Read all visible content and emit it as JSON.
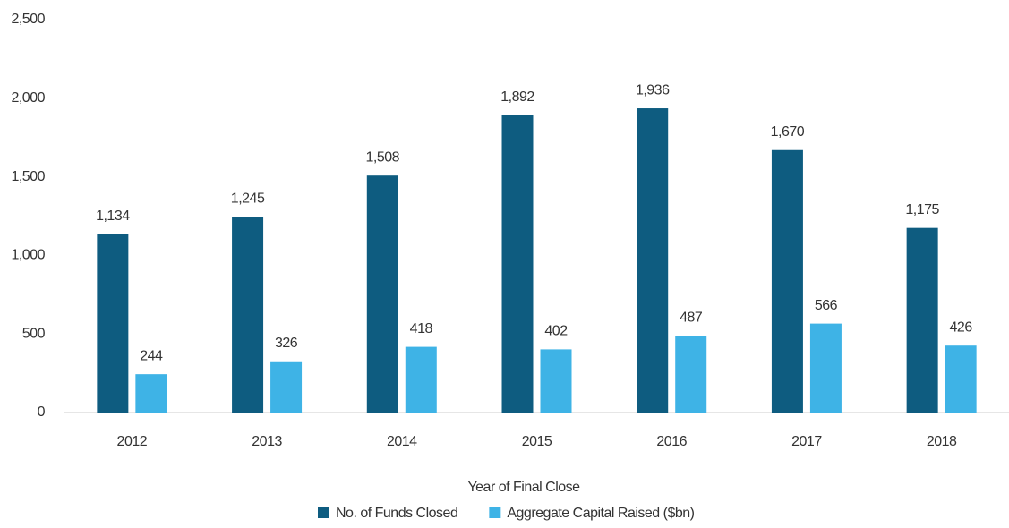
{
  "chart_data": {
    "type": "bar",
    "x_label": "Year of Final Close",
    "categories": [
      "2012",
      "2013",
      "2014",
      "2015",
      "2016",
      "2017",
      "2018"
    ],
    "series": [
      {
        "name": "No. of Funds Closed",
        "color": "#0e5c80",
        "values": [
          1134,
          1245,
          1508,
          1892,
          1936,
          1670,
          1175
        ],
        "value_labels": [
          "1,134",
          "1,245",
          "1,508",
          "1,892",
          "1,936",
          "1,670",
          "1,175"
        ]
      },
      {
        "name": "Aggregate Capital Raised ($bn)",
        "color": "#3eb3e6",
        "values": [
          244,
          326,
          418,
          402,
          487,
          566,
          426
        ]
      }
    ],
    "ylim": [
      0,
      2500
    ],
    "yticks": [
      0,
      500,
      {
        "value": 1000,
        "label": "1,000"
      },
      {
        "value": 1500,
        "label": "1,500"
      },
      {
        "value": 2000,
        "label": "2,000"
      },
      {
        "value": 2500,
        "label": "2,500"
      }
    ],
    "grid": false,
    "legend": "bottom"
  }
}
